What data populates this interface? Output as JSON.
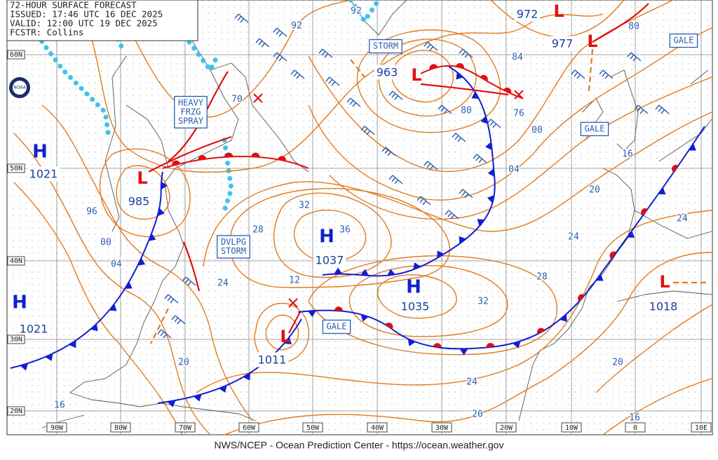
{
  "header": {
    "lines": [
      "72-HOUR SURFACE FORECAST",
      "ISSUED: 17:46 UTC 16 DEC 2025",
      "VALID: 12:00 UTC 19 DEC 2025",
      "FCSTR: Collins"
    ]
  },
  "logo": "NOAA",
  "centers": [
    {
      "symbol": "H",
      "pressure": "1021"
    },
    {
      "symbol": "L",
      "pressure": "985"
    },
    {
      "symbol": "H",
      "pressure": "1037"
    },
    {
      "symbol": "H",
      "pressure": "1035"
    },
    {
      "symbol": "H",
      "pressure": "1021"
    },
    {
      "symbol": "L",
      "pressure": "1011"
    },
    {
      "symbol": "L",
      "pressure": "963"
    },
    {
      "symbol": "L",
      "pressure": "972"
    },
    {
      "symbol": "L",
      "pressure": "977"
    },
    {
      "symbol": "L",
      "pressure": "1018"
    }
  ],
  "isobar_labels": [
    "92",
    "92",
    "84",
    "80",
    "80",
    "00",
    "04",
    "16",
    "20",
    "24",
    "24",
    "32",
    "28",
    "36",
    "96",
    "00",
    "04",
    "24",
    "12",
    "28",
    "32",
    "20",
    "24",
    "20",
    "20",
    "16",
    "16",
    "70",
    "76"
  ],
  "warnings": [
    {
      "lines": [
        "STORM"
      ]
    },
    {
      "lines": [
        "GALE"
      ]
    },
    {
      "lines": [
        "GALE"
      ]
    },
    {
      "lines": [
        "GALE"
      ]
    },
    {
      "lines": [
        "HEAVY",
        "FRZG",
        "SPRAY"
      ]
    },
    {
      "lines": [
        "DVLPG",
        "STORM"
      ]
    }
  ],
  "latitude_labels": [
    "60N",
    "50N",
    "40N",
    "30N",
    "20N"
  ],
  "longitude_labels": [
    "90W",
    "80W",
    "70W",
    "60W",
    "50W",
    "40W",
    "30W",
    "20W",
    "10W",
    "0",
    "10E"
  ],
  "footer": "NWS/NCEP - Ocean Prediction Center - https://ocean.weather.gov"
}
